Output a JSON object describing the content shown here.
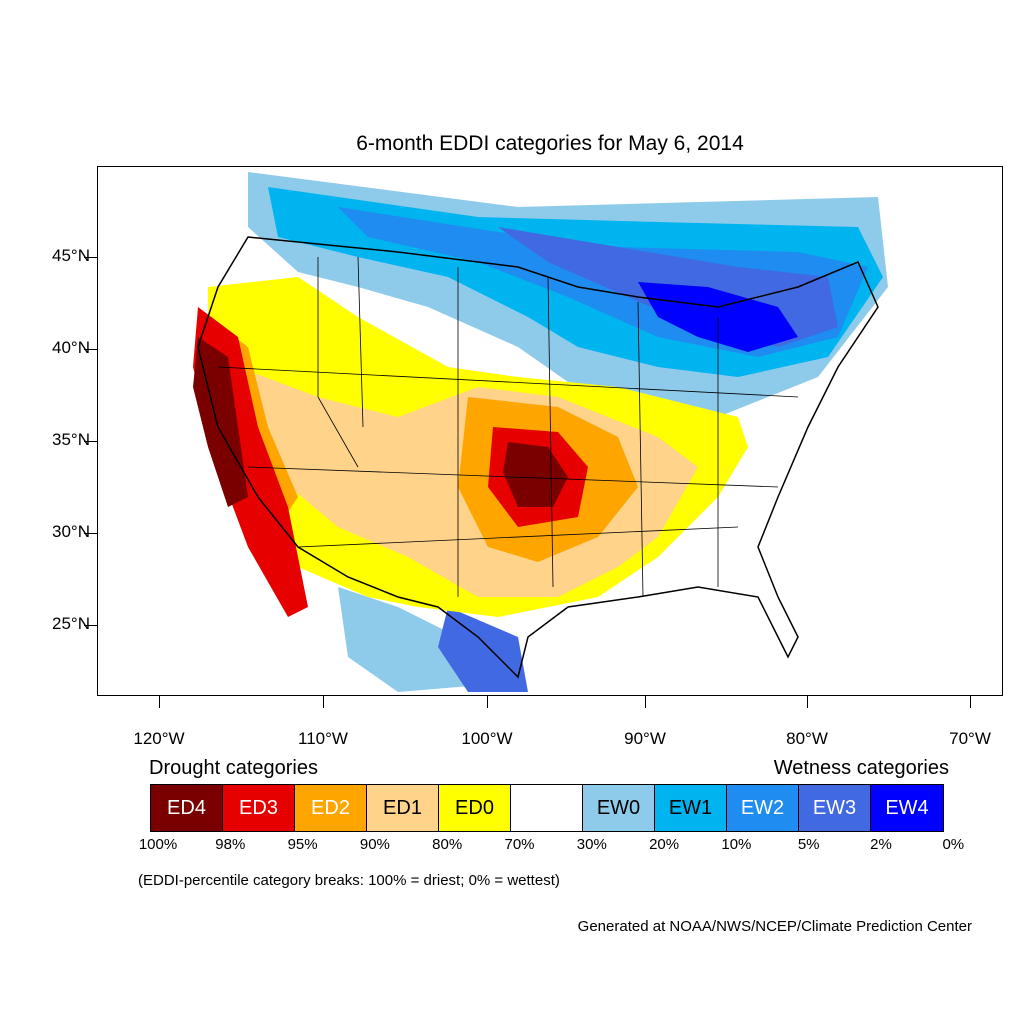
{
  "title": "6-month EDDI categories for May 6, 2014",
  "latitude_labels": [
    "45°N",
    "40°N",
    "35°N",
    "30°N",
    "25°N"
  ],
  "longitude_labels": [
    "120°W",
    "110°W",
    "100°W",
    "90°W",
    "80°W",
    "70°W"
  ],
  "legend": {
    "drought_heading": "Drought categories",
    "wetness_heading": "Wetness categories",
    "categories": [
      {
        "label": "ED4",
        "color": "#7a0000",
        "text_color": "#ffffff"
      },
      {
        "label": "ED3",
        "color": "#e60000",
        "text_color": "#ffffff"
      },
      {
        "label": "ED2",
        "color": "#ffa500",
        "text_color": "#ffffff"
      },
      {
        "label": "ED1",
        "color": "#ffd38a",
        "text_color": "#000000"
      },
      {
        "label": "ED0",
        "color": "#ffff00",
        "text_color": "#000000"
      },
      {
        "label": "",
        "color": "#ffffff",
        "text_color": "#000000"
      },
      {
        "label": "EW0",
        "color": "#8ecbeb",
        "text_color": "#000000"
      },
      {
        "label": "EW1",
        "color": "#00b4f0",
        "text_color": "#000000"
      },
      {
        "label": "EW2",
        "color": "#1e8cf0",
        "text_color": "#ffffff"
      },
      {
        "label": "EW3",
        "color": "#4169e1",
        "text_color": "#ffffff"
      },
      {
        "label": "EW4",
        "color": "#0000ff",
        "text_color": "#ffffff"
      }
    ],
    "breaks": [
      "100%",
      "98%",
      "95%",
      "90%",
      "80%",
      "70%",
      "30%",
      "20%",
      "10%",
      "5%",
      "2%",
      "0%"
    ]
  },
  "note": "(EDDI-percentile category breaks: 100% = driest; 0% = wettest)",
  "credit": "Generated at NOAA/NWS/NCEP/Climate Prediction Center"
}
